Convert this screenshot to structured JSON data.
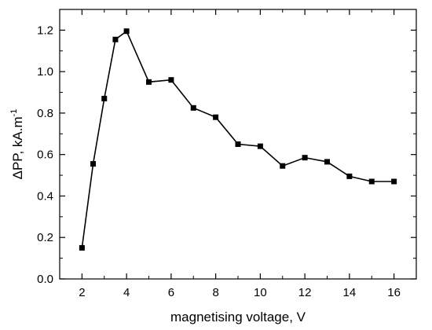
{
  "chart_data": {
    "type": "line",
    "title": "",
    "xlabel": "magnetising voltage, V",
    "ylabel_main": "ΔPP, kA.m",
    "ylabel_superscript": "-1",
    "xlim": [
      1,
      17
    ],
    "ylim": [
      0,
      1.3
    ],
    "xticks": [
      2,
      4,
      6,
      8,
      10,
      12,
      14,
      16
    ],
    "yticks": [
      0.0,
      0.2,
      0.4,
      0.6,
      0.8,
      1.0,
      1.2
    ],
    "ytick_labels": [
      "0.0",
      "0.2",
      "0.4",
      "0.6",
      "0.8",
      "1.0",
      "1.2"
    ],
    "grid": false,
    "marker": "square",
    "line_color": "#000000",
    "series": [
      {
        "x": [
          2,
          2.5,
          3,
          3.5,
          4,
          5,
          6,
          7,
          8,
          9,
          10,
          11,
          12,
          13,
          14,
          15,
          16
        ],
        "y": [
          0.15,
          0.555,
          0.87,
          1.155,
          1.195,
          0.95,
          0.96,
          0.825,
          0.78,
          0.65,
          0.64,
          0.545,
          0.585,
          0.565,
          0.495,
          0.47,
          0.47
        ]
      }
    ]
  }
}
